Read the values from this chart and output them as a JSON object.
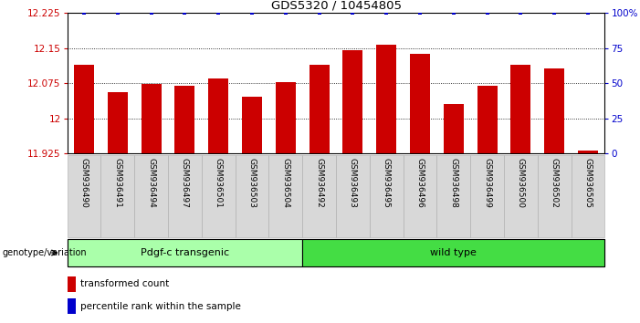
{
  "title": "GDS5320 / 10454805",
  "categories": [
    "GSM936490",
    "GSM936491",
    "GSM936494",
    "GSM936497",
    "GSM936501",
    "GSM936503",
    "GSM936504",
    "GSM936492",
    "GSM936493",
    "GSM936495",
    "GSM936496",
    "GSM936498",
    "GSM936499",
    "GSM936500",
    "GSM936502",
    "GSM936505"
  ],
  "bar_values": [
    12.115,
    12.055,
    12.073,
    12.07,
    12.085,
    12.047,
    12.077,
    12.115,
    12.145,
    12.158,
    12.137,
    12.03,
    12.07,
    12.115,
    12.107,
    11.932
  ],
  "percentile_values": [
    100,
    100,
    100,
    100,
    100,
    100,
    100,
    100,
    100,
    100,
    100,
    100,
    100,
    100,
    100,
    100
  ],
  "bar_color": "#cc0000",
  "percentile_color": "#0000cc",
  "ylim_left": [
    11.925,
    12.225
  ],
  "ylim_right": [
    0,
    100
  ],
  "yticks_left": [
    11.925,
    12.0,
    12.075,
    12.15,
    12.225
  ],
  "yticks_right": [
    0,
    25,
    50,
    75,
    100
  ],
  "ytick_labels_left": [
    "11.925",
    "12",
    "12.075",
    "12.15",
    "12.225"
  ],
  "ytick_labels_right": [
    "0",
    "25",
    "50",
    "75",
    "100%"
  ],
  "group1_label": "Pdgf-c transgenic",
  "group2_label": "wild type",
  "group1_color": "#aaffaa",
  "group2_color": "#44dd44",
  "group1_indices": [
    0,
    6
  ],
  "group2_indices": [
    7,
    15
  ],
  "genotype_label": "genotype/variation",
  "legend_bar_label": "transformed count",
  "legend_pct_label": "percentile rank within the sample",
  "bar_width": 0.6,
  "background_color": "#ffffff",
  "tick_label_area_color": "#d8d8d8"
}
